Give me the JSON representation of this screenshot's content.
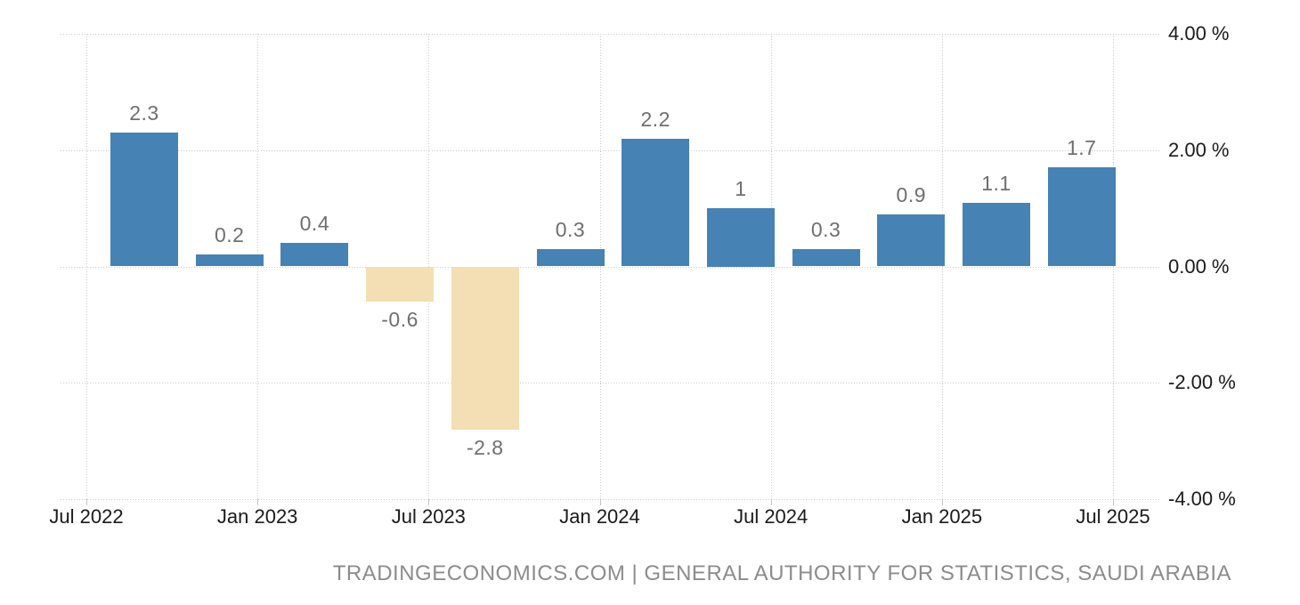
{
  "chart_data": {
    "type": "bar",
    "title": "",
    "values": [
      2.3,
      0.2,
      0.4,
      -0.6,
      -2.8,
      0.3,
      2.2,
      1,
      0.3,
      0.9,
      1.1,
      1.7
    ],
    "bar_labels": [
      "2.3",
      "0.2",
      "0.4",
      "-0.6",
      "-2.8",
      "0.3",
      "2.2",
      "1",
      "0.3",
      "0.9",
      "1.1",
      "1.7"
    ],
    "x_tick_labels": [
      "Jul 2022",
      "Jan 2023",
      "Jul 2023",
      "Jan 2024",
      "Jul 2024",
      "Jan 2025",
      "Jul 2025"
    ],
    "y_tick_labels": [
      "4.00 %",
      "2.00 %",
      "0.00 %",
      "-2.00 %",
      "-4.00 %"
    ],
    "y_tick_values": [
      4,
      2,
      0,
      -2,
      -4
    ],
    "ylim": [
      -4,
      4
    ],
    "grid": "dotted",
    "legend": "none",
    "colors": {
      "positive_bar": "#4682B4",
      "negative_bar": "#F3DFB3",
      "value_label": "#6F6F6F",
      "axis_label": "#1A1A1A",
      "gridline": "#CCCCCC",
      "attribution_text": "#8C8C8C",
      "background": "#FFFFFF"
    }
  },
  "footer": {
    "attribution": "TRADINGECONOMICS.COM | GENERAL AUTHORITY FOR STATISTICS, SAUDI ARABIA"
  }
}
